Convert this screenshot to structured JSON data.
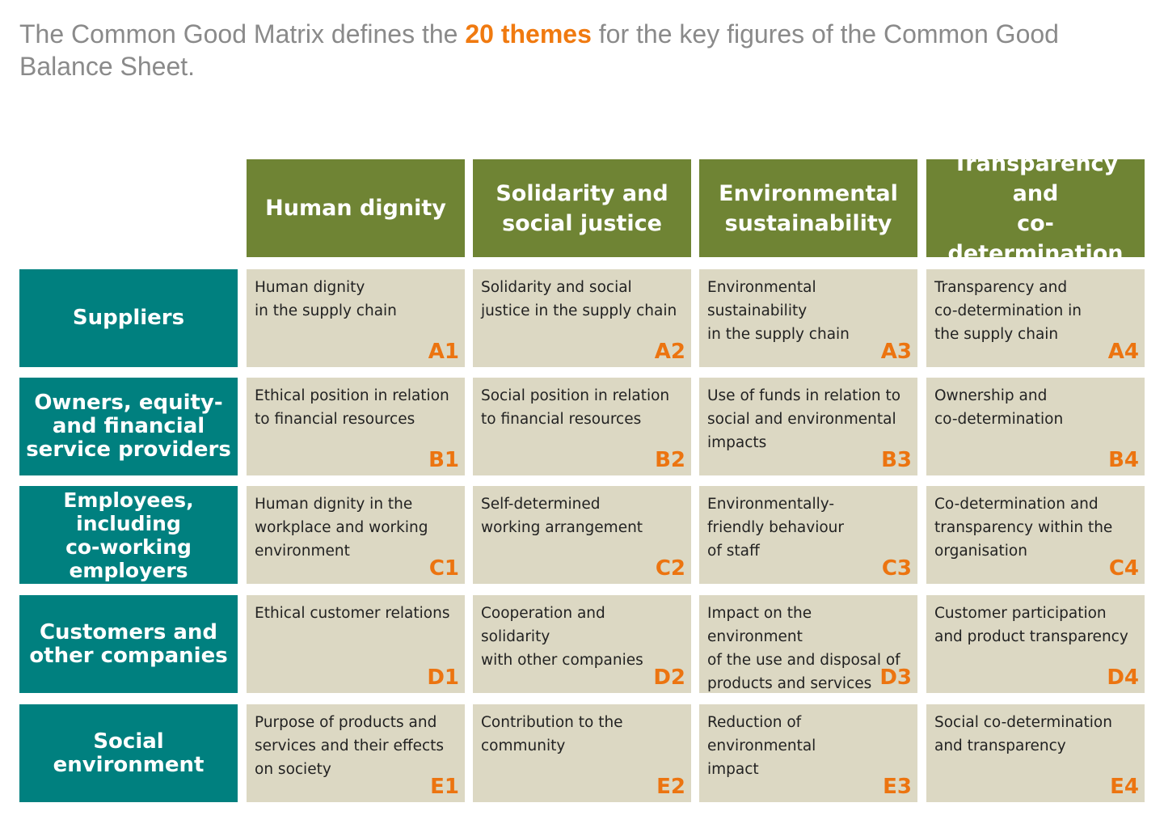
{
  "intro": {
    "before": "The Common Good Matrix defines the ",
    "highlight": "20 themes",
    "after": " for the key figures of the Common Good Balance Sheet."
  },
  "colors": {
    "column_header": "#6f8434",
    "row_header": "#00807f",
    "cell": "#dcd8c3",
    "code": "#ec7410",
    "intro_text": "#8a8a8a"
  },
  "columns": [
    {
      "label": "Human dignity"
    },
    {
      "label": "Solidarity and\nsocial justice"
    },
    {
      "label": "Environmental\nsustainability"
    },
    {
      "label": "Transparency and\nco-determination"
    }
  ],
  "rows": [
    {
      "label": "Suppliers",
      "cells": [
        {
          "text": "Human dignity\nin the supply chain",
          "code": "A1"
        },
        {
          "text": "Solidarity and social\njustice in the supply chain",
          "code": "A2"
        },
        {
          "text": "Environmental\nsustainability\nin the supply chain",
          "code": "A3"
        },
        {
          "text": "Transparency and\nco-determination in\nthe supply chain",
          "code": "A4"
        }
      ]
    },
    {
      "label": "Owners, equity-\nand financial\nservice providers",
      "cells": [
        {
          "text": "Ethical position in relation\nto financial resources",
          "code": "B1"
        },
        {
          "text": "Social position in relation\nto financial resources",
          "code": "B2"
        },
        {
          "text": "Use of funds in relation to\nsocial and environmental\nimpacts",
          "code": "B3"
        },
        {
          "text": "Ownership and\nco-determination",
          "code": "B4"
        }
      ]
    },
    {
      "label": "Employees,\nincluding\nco-working\nemployers",
      "cells": [
        {
          "text": "Human dignity in the\nworkplace and working\nenvironment",
          "code": "C1"
        },
        {
          "text": "Self-determined\nworking arrangement",
          "code": "C2"
        },
        {
          "text": "Environmentally-\nfriendly behaviour\nof staff",
          "code": "C3"
        },
        {
          "text": "Co-determination and\ntransparency within the\norganisation",
          "code": "C4"
        }
      ]
    },
    {
      "label": "Customers and\nother companies",
      "cells": [
        {
          "text": "Ethical customer relations",
          "code": "D1"
        },
        {
          "text": "Cooperation and\nsolidarity\nwith other companies",
          "code": "D2"
        },
        {
          "text": "Impact on the\nenvironment\nof the use and disposal of\nproducts and services",
          "code": "D3"
        },
        {
          "text": "Customer participation\nand product transparency",
          "code": "D4"
        }
      ]
    },
    {
      "label": "Social\nenvironment",
      "cells": [
        {
          "text": "Purpose of products and\nservices and their effects\non society",
          "code": "E1"
        },
        {
          "text": "Contribution to the\ncommunity",
          "code": "E2"
        },
        {
          "text": "Reduction of\nenvironmental\nimpact",
          "code": "E3"
        },
        {
          "text": "Social co-determination\nand transparency",
          "code": "E4"
        }
      ]
    }
  ]
}
